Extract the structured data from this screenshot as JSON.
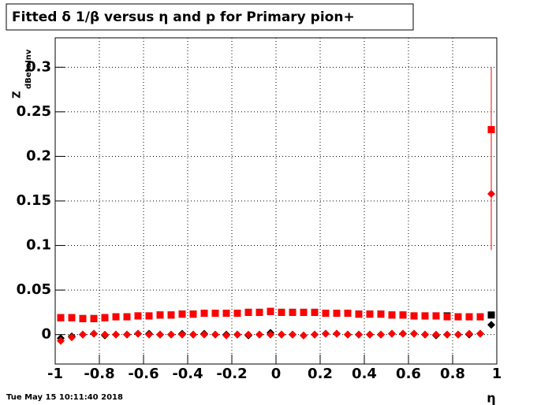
{
  "chart_data": {
    "type": "scatter",
    "title": "Fitted δ 1/β versus η and p for Primary pion+",
    "ylabel": "Z",
    "ylabel_sub": "dBetaInv",
    "xlabel": "η",
    "timestamp": "Tue May 15 10:11:40 2018",
    "x": [
      -0.975,
      -0.925,
      -0.875,
      -0.825,
      -0.775,
      -0.725,
      -0.675,
      -0.625,
      -0.575,
      -0.525,
      -0.475,
      -0.425,
      -0.375,
      -0.325,
      -0.275,
      -0.225,
      -0.175,
      -0.125,
      -0.075,
      -0.025,
      0.025,
      0.075,
      0.125,
      0.175,
      0.225,
      0.275,
      0.325,
      0.375,
      0.425,
      0.475,
      0.525,
      0.575,
      0.625,
      0.675,
      0.725,
      0.775,
      0.825,
      0.875,
      0.925,
      0.975
    ],
    "series": [
      {
        "color": "#000000",
        "marker": "square",
        "values": [
          0.019,
          0.019,
          0.018,
          0.018,
          0.019,
          0.02,
          0.02,
          0.021,
          0.021,
          0.022,
          0.022,
          0.023,
          0.023,
          0.024,
          0.024,
          0.024,
          0.024,
          0.025,
          0.025,
          0.026,
          0.025,
          0.025,
          0.025,
          0.025,
          0.024,
          0.024,
          0.024,
          0.023,
          0.023,
          0.023,
          0.022,
          0.022,
          0.021,
          0.021,
          0.021,
          0.021,
          0.02,
          0.02,
          0.02,
          0.022
        ]
      },
      {
        "color": "#000000",
        "marker": "diamond",
        "values": [
          -0.004,
          -0.002,
          0.0,
          0.001,
          -0.001,
          0.0,
          0.0,
          0.001,
          0.001,
          0.0,
          0.0,
          0.001,
          0.0,
          0.001,
          0.0,
          0.0,
          0.0,
          -0.001,
          0.0,
          0.002,
          0.0,
          0.0,
          -0.001,
          0.0,
          0.001,
          0.001,
          0.0,
          0.0,
          0.0,
          0.0,
          0.001,
          0.001,
          0.001,
          0.0,
          -0.001,
          0.0,
          0.0,
          0.0,
          0.001,
          0.011
        ]
      },
      {
        "color": "#ff0000",
        "marker": "square",
        "values": [
          0.019,
          0.019,
          0.018,
          0.018,
          0.019,
          0.02,
          0.02,
          0.021,
          0.021,
          0.022,
          0.022,
          0.023,
          0.023,
          0.024,
          0.024,
          0.024,
          0.024,
          0.025,
          0.025,
          0.026,
          0.025,
          0.025,
          0.025,
          0.025,
          0.024,
          0.024,
          0.024,
          0.023,
          0.023,
          0.023,
          0.022,
          0.022,
          0.021,
          0.021,
          0.021,
          0.02,
          0.02,
          0.02,
          0.02,
          0.23
        ],
        "errors": [
          null,
          null,
          null,
          null,
          null,
          null,
          null,
          null,
          null,
          null,
          null,
          null,
          null,
          null,
          null,
          null,
          null,
          null,
          null,
          null,
          null,
          null,
          null,
          null,
          null,
          null,
          null,
          null,
          null,
          null,
          null,
          null,
          null,
          null,
          null,
          null,
          null,
          null,
          null,
          0.07
        ]
      },
      {
        "color": "#ff0000",
        "marker": "diamond",
        "values": [
          -0.007,
          -0.003,
          0.0,
          0.001,
          0.0,
          0.0,
          0.0,
          0.001,
          0.0,
          0.0,
          0.0,
          0.0,
          0.0,
          0.0,
          0.0,
          -0.001,
          0.0,
          0.0,
          0.0,
          0.0,
          0.0,
          0.0,
          -0.001,
          0.0,
          0.001,
          0.001,
          0.0,
          0.0,
          0.0,
          0.0,
          0.001,
          0.001,
          0.001,
          0.0,
          0.0,
          0.0,
          0.0,
          0.001,
          0.001,
          0.158
        ],
        "errors": [
          null,
          null,
          null,
          null,
          null,
          null,
          null,
          null,
          null,
          null,
          null,
          null,
          null,
          null,
          null,
          null,
          null,
          null,
          null,
          null,
          null,
          null,
          null,
          null,
          null,
          null,
          null,
          null,
          null,
          null,
          null,
          null,
          null,
          null,
          null,
          null,
          null,
          null,
          null,
          0.063
        ]
      }
    ],
    "xlim": [
      -1,
      1
    ],
    "ylim": [
      -0.033,
      0.333
    ],
    "xticks": [
      -1,
      -0.8,
      -0.6,
      -0.4,
      -0.2,
      0,
      0.2,
      0.4,
      0.6,
      0.8,
      1
    ],
    "yticks": [
      0,
      0.05,
      0.1,
      0.15,
      0.2,
      0.25,
      0.3
    ],
    "grid": true
  }
}
